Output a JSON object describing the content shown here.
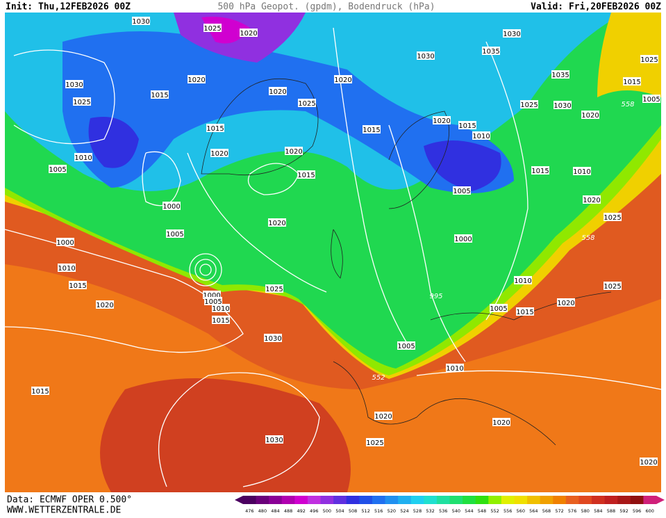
{
  "header": {
    "init": "Init: Thu,12FEB2026 00Z",
    "title": "500 hPa Geopot. (gpdm), Bodendruck (hPa)",
    "valid": "Valid: Fri,20FEB2026 00Z"
  },
  "isobar_labels": [
    1030,
    1025,
    1020,
    1030,
    1030,
    1035,
    1025,
    1030,
    1020,
    1015,
    1025,
    1020,
    1025,
    1020,
    1035,
    1015,
    1005,
    1025,
    1030,
    1020,
    558,
    1020,
    1015,
    1010,
    1015,
    1015,
    1020,
    1020,
    1015,
    1010,
    1005,
    1015,
    1010,
    1005,
    1000,
    1020,
    1025,
    1020,
    1005,
    558,
    1000,
    1000,
    1010,
    1010,
    1025,
    1015,
    1025,
    995,
    1000,
    1005,
    1010,
    1020,
    1020,
    1005,
    1015,
    1015,
    1030,
    1005,
    1010,
    552,
    1015,
    1020,
    1020,
    1030,
    1025,
    1020
  ],
  "colorbar": {
    "labels": [
      476,
      480,
      484,
      488,
      492,
      496,
      500,
      504,
      508,
      512,
      516,
      520,
      524,
      528,
      532,
      536,
      540,
      544,
      548,
      552,
      556,
      560,
      564,
      568,
      572,
      576,
      580,
      584,
      588,
      592,
      596,
      600
    ],
    "colors": [
      "#4b0060",
      "#6a007a",
      "#8a0096",
      "#b000b0",
      "#d000d0",
      "#c030e0",
      "#9030e0",
      "#6030e0",
      "#3030e0",
      "#2050e8",
      "#2070f0",
      "#2090f0",
      "#20b0f0",
      "#20d0f0",
      "#20e0d0",
      "#20e0a0",
      "#20e070",
      "#20e040",
      "#30e010",
      "#90f000",
      "#e0f000",
      "#f0e000",
      "#f0c000",
      "#f0a000",
      "#f08000",
      "#e86020",
      "#e04820",
      "#d03020",
      "#c02020",
      "#a81818",
      "#901010",
      "#d0207a"
    ]
  },
  "footer": {
    "data": "Data: ECMWF OPER 0.500°",
    "site": "WWW.WETTERZENTRALE.DE"
  }
}
